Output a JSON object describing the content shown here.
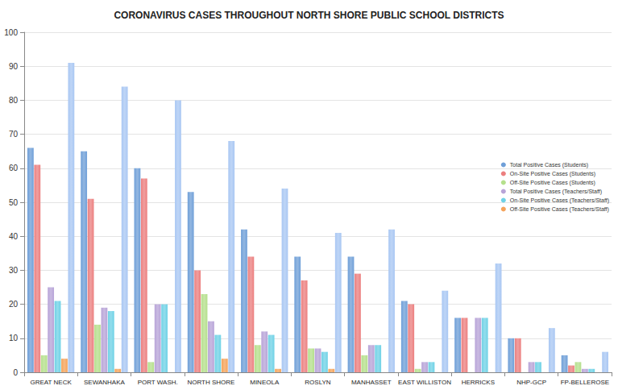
{
  "chart_data": {
    "type": "bar",
    "title": "CORONAVIRUS CASES THROUGHOUT NORTH SHORE PUBLIC SCHOOL DISTRICTS",
    "categories": [
      "GREAT NECK",
      "SEWANHAKA",
      "PORT WASH.",
      "NORTH SHORE",
      "MINEOLA",
      "ROSLYN",
      "MANHASSET",
      "EAST WILLISTON",
      "HERRICKS",
      "NHP-GCP",
      "FP-BELLEROSE"
    ],
    "series": [
      {
        "name": "Total Positive Cases (Students)",
        "color": "#6f9fd8",
        "values": [
          66,
          65,
          60,
          53,
          42,
          34,
          34,
          21,
          16,
          10,
          5
        ]
      },
      {
        "name": "On-Site Positive Cases (Students)",
        "color": "#ec7f7f",
        "values": [
          61,
          51,
          57,
          30,
          34,
          27,
          29,
          20,
          16,
          10,
          2
        ]
      },
      {
        "name": "Off-Site Positive Cases (Students)",
        "color": "#b5e08c",
        "values": [
          5,
          14,
          3,
          23,
          8,
          7,
          5,
          1,
          0,
          0,
          3
        ]
      },
      {
        "name": "Total Positive Cases (Teachers/Staff)",
        "color": "#b8a4d8",
        "values": [
          25,
          19,
          20,
          15,
          12,
          7,
          8,
          3,
          16,
          3,
          1
        ]
      },
      {
        "name": "On-Site Positive Cases (Teachers/Staff)",
        "color": "#6fd2e6",
        "values": [
          21,
          18,
          20,
          11,
          11,
          6,
          8,
          3,
          16,
          3,
          1
        ]
      },
      {
        "name": "Off-Site Positive Cases (Teachers/Staff)",
        "color": "#f5a35a",
        "values": [
          4,
          1,
          0,
          4,
          1,
          1,
          0,
          0,
          0,
          0,
          0
        ]
      },
      {
        "name": null,
        "color": "#a9c7f3",
        "values": [
          91,
          84,
          80,
          68,
          54,
          41,
          42,
          24,
          32,
          13,
          6
        ]
      }
    ],
    "ylim": [
      0,
      100
    ],
    "yticks": [
      0,
      10,
      20,
      30,
      40,
      50,
      60,
      70,
      80,
      90,
      100
    ],
    "grid": true,
    "legend": "right"
  }
}
